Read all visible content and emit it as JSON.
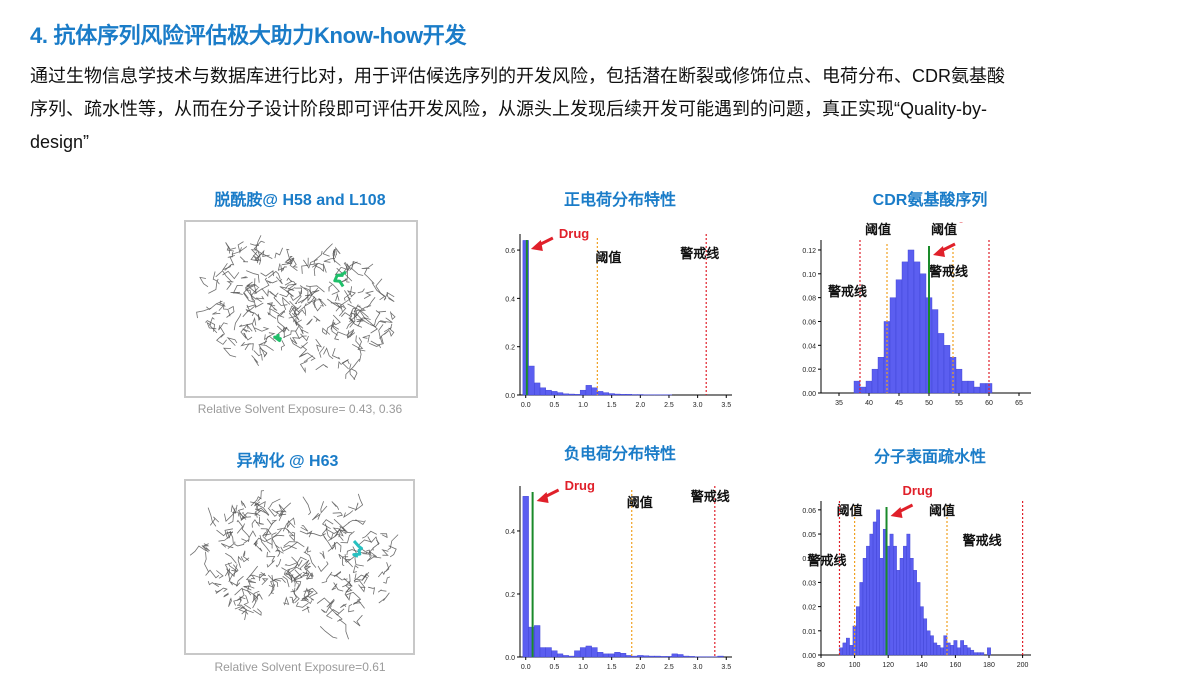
{
  "heading": "4. 抗体序列风险评估极大助力Know-how开发",
  "paragraph": [
    "通过生物信息学技术与数据库进行比对，用于评估候选序列的开发风险，包括潜在断裂或修饰位点、电荷分布、CDR氨基酸",
    "序列、疏水性等，从而在分子设计阶段即可评估开发风险，从源头上发现后续开发可能遇到的问题，真正实现“Quality-by-",
    "design”"
  ],
  "panels": {
    "deamidation": {
      "title": "脱酰胺@ H58 and L108",
      "caption": "Relative Solvent Exposure= 0.43, 0.36",
      "highlight_color": "#1fbf6a"
    },
    "isomerization": {
      "title": "异构化 @ H63",
      "caption": "Relative Solvent Exposure=0.61",
      "highlight_color": "#28c0c0"
    }
  },
  "colors": {
    "bar": "#5b5ef0",
    "bar_edge": "#3b3fd0",
    "drug_line": "#1a8a2a",
    "threshold": "#f0a020",
    "warning": "#e0202a",
    "arrow": "#e0202a"
  },
  "chart_data": [
    {
      "id": "positive-charge",
      "type": "bar",
      "title": "正电荷分布特性",
      "xlim": [
        -0.1,
        3.6
      ],
      "ylim": [
        0,
        0.65
      ],
      "xticks": [
        "0.0",
        "0.5",
        "1.0",
        "1.5",
        "2.0",
        "2.5",
        "3.0",
        "3.5"
      ],
      "yticks": [
        "0.0",
        "0.2",
        "0.4",
        "0.6"
      ],
      "bin_width": 0.1,
      "x": [
        0.0,
        0.1,
        0.2,
        0.3,
        0.4,
        0.5,
        0.6,
        0.7,
        0.8,
        0.9,
        1.0,
        1.1,
        1.2,
        1.3,
        1.4,
        1.5,
        1.6,
        1.7,
        1.8,
        1.9,
        2.0,
        2.1,
        2.2,
        2.3,
        2.4,
        2.5,
        2.6,
        2.7,
        2.8,
        2.9,
        3.0,
        3.1,
        3.2,
        3.3,
        3.4
      ],
      "values": [
        0.64,
        0.12,
        0.05,
        0.03,
        0.02,
        0.015,
        0.01,
        0.005,
        0.004,
        0.003,
        0.02,
        0.04,
        0.03,
        0.015,
        0.01,
        0.006,
        0.004,
        0.003,
        0.003,
        0.002,
        0.002,
        0.001,
        0.001,
        0.001,
        0.001,
        0.001,
        0.0,
        0.0,
        0.0,
        0.0,
        0.0,
        0.0,
        0.0,
        0.0,
        0.0
      ],
      "drug_x": 0.02,
      "threshold_x": [
        1.25
      ],
      "warning_x": [
        3.15
      ],
      "labels": {
        "drug": "Drug",
        "threshold": "阈值",
        "warning": "警戒线"
      }
    },
    {
      "id": "cdr-amino-acid",
      "type": "bar",
      "title": "CDR氨基酸序列",
      "xlim": [
        32,
        67
      ],
      "ylim": [
        0,
        0.125
      ],
      "xticks": [
        "35",
        "40",
        "45",
        "50",
        "55",
        "60",
        "65"
      ],
      "yticks": [
        "0.00",
        "0.02",
        "0.04",
        "0.06",
        "0.08",
        "0.10",
        "0.12"
      ],
      "bin_width": 1,
      "x": [
        38,
        39,
        40,
        41,
        42,
        43,
        44,
        45,
        46,
        47,
        48,
        49,
        50,
        51,
        52,
        53,
        54,
        55,
        56,
        57,
        58,
        59,
        60
      ],
      "values": [
        0.01,
        0.005,
        0.01,
        0.02,
        0.03,
        0.06,
        0.08,
        0.095,
        0.11,
        0.12,
        0.11,
        0.1,
        0.08,
        0.07,
        0.05,
        0.04,
        0.03,
        0.02,
        0.01,
        0.01,
        0.005,
        0.008,
        0.008
      ],
      "drug_x": 50,
      "threshold_x": [
        43,
        54
      ],
      "warning_x": [
        38.5,
        60
      ],
      "labels": {
        "drug": "Drug",
        "threshold": "阈值",
        "warning": "警戒线"
      }
    },
    {
      "id": "negative-charge",
      "type": "bar",
      "title": "负电荷分布特性",
      "xlim": [
        -0.1,
        3.6
      ],
      "ylim": [
        0,
        0.53
      ],
      "xticks": [
        "0.0",
        "0.5",
        "1.0",
        "1.5",
        "2.0",
        "2.5",
        "3.0",
        "3.5"
      ],
      "yticks": [
        "0.0",
        "0.2",
        "0.4"
      ],
      "bin_width": 0.1,
      "x": [
        0.0,
        0.1,
        0.2,
        0.3,
        0.4,
        0.5,
        0.6,
        0.7,
        0.8,
        0.9,
        1.0,
        1.1,
        1.2,
        1.3,
        1.4,
        1.5,
        1.6,
        1.7,
        1.8,
        1.9,
        2.0,
        2.1,
        2.2,
        2.3,
        2.4,
        2.5,
        2.6,
        2.7,
        2.8,
        2.9,
        3.0,
        3.1,
        3.2,
        3.3,
        3.4
      ],
      "values": [
        0.51,
        0.095,
        0.1,
        0.03,
        0.03,
        0.02,
        0.01,
        0.005,
        0.003,
        0.02,
        0.03,
        0.035,
        0.03,
        0.015,
        0.01,
        0.01,
        0.015,
        0.012,
        0.005,
        0.003,
        0.005,
        0.004,
        0.003,
        0.003,
        0.002,
        0.002,
        0.01,
        0.008,
        0.003,
        0.002,
        0.001,
        0.001,
        0.001,
        0.001,
        0.003
      ],
      "drug_x": 0.12,
      "threshold_x": [
        1.85
      ],
      "warning_x": [
        3.3
      ],
      "labels": {
        "drug": "Drug",
        "threshold": "阈值",
        "warning": "警戒线"
      }
    },
    {
      "id": "surface-hydrophobicity",
      "type": "bar",
      "title": "分子表面疏水性",
      "xlim": [
        80,
        205
      ],
      "ylim": [
        0,
        0.062
      ],
      "xticks": [
        "80",
        "100",
        "120",
        "140",
        "160",
        "180",
        "200"
      ],
      "yticks": [
        "0.00",
        "0.01",
        "0.02",
        "0.03",
        "0.04",
        "0.05",
        "0.06"
      ],
      "bin_width": 2,
      "x": [
        92,
        94,
        96,
        98,
        100,
        102,
        104,
        106,
        108,
        110,
        112,
        114,
        116,
        118,
        120,
        122,
        124,
        126,
        128,
        130,
        132,
        134,
        136,
        138,
        140,
        142,
        144,
        146,
        148,
        150,
        152,
        154,
        156,
        158,
        160,
        162,
        164,
        166,
        168,
        170,
        172,
        174,
        176,
        178,
        180,
        182,
        184,
        186,
        188,
        190,
        192,
        194,
        196,
        198
      ],
      "values": [
        0.003,
        0.005,
        0.007,
        0.004,
        0.012,
        0.02,
        0.03,
        0.04,
        0.045,
        0.05,
        0.055,
        0.06,
        0.04,
        0.052,
        0.045,
        0.05,
        0.045,
        0.035,
        0.04,
        0.045,
        0.05,
        0.04,
        0.035,
        0.03,
        0.02,
        0.015,
        0.01,
        0.008,
        0.005,
        0.004,
        0.003,
        0.008,
        0.005,
        0.004,
        0.006,
        0.003,
        0.006,
        0.004,
        0.003,
        0.002,
        0.001,
        0.001,
        0.001,
        0.0,
        0.003,
        0.0,
        0.0,
        0.0,
        0.0,
        0.0,
        0.0,
        0.0,
        0.0,
        0.0
      ],
      "drug_x": 119,
      "threshold_x": [
        100,
        155
      ],
      "warning_x": [
        91,
        200
      ],
      "labels": {
        "drug": "Drug",
        "threshold": "阈值",
        "warning": "警戒线"
      }
    }
  ]
}
